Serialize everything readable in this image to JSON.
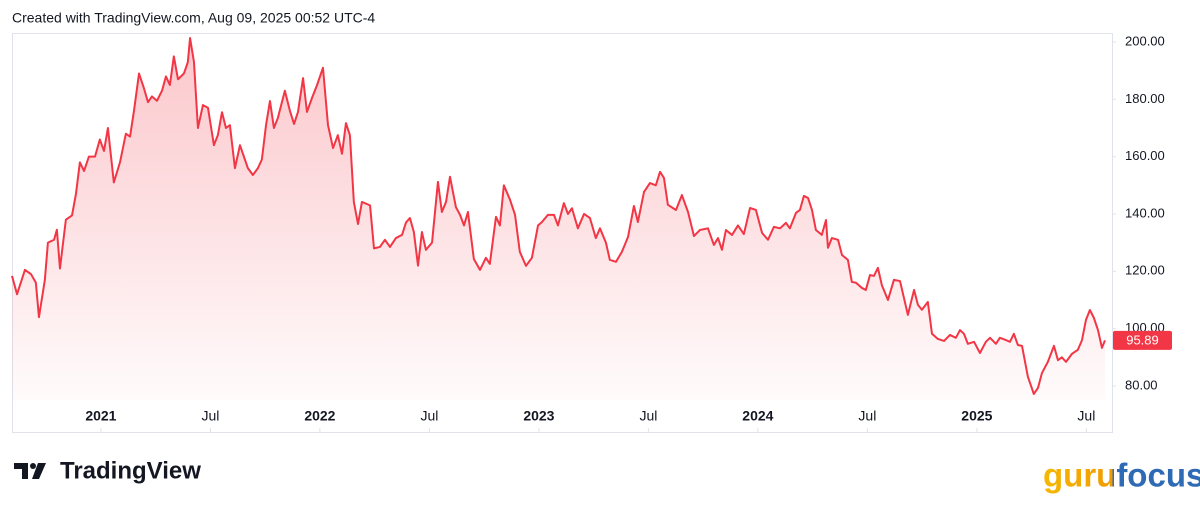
{
  "header": "Created with TradingView.com, Aug 09, 2025 00:52 UTC-4",
  "logos": [
    "TradingView",
    "gurufocus"
  ],
  "chart_data": {
    "type": "area",
    "color": "#f23645",
    "x": [
      2020.594,
      2020.617,
      2020.653,
      2020.681,
      2020.703,
      2020.717,
      2020.744,
      2020.758,
      2020.786,
      2020.799,
      2020.813,
      2020.84,
      2020.868,
      2020.886,
      2020.904,
      2020.923,
      2020.945,
      2020.973,
      2020.995,
      2021.014,
      2021.032,
      2021.059,
      2021.087,
      2021.114,
      2021.133,
      2021.151,
      2021.174,
      2021.196,
      2021.215,
      2021.233,
      2021.256,
      2021.279,
      2021.297,
      2021.315,
      2021.333,
      2021.352,
      2021.379,
      2021.397,
      2021.407,
      2021.425,
      2021.443,
      2021.466,
      2021.489,
      2021.516,
      2021.534,
      2021.553,
      2021.571,
      2021.589,
      2021.612,
      2021.635,
      2021.671,
      2021.694,
      2021.717,
      2021.735,
      2021.754,
      2021.772,
      2021.79,
      2021.808,
      2021.84,
      2021.863,
      2021.882,
      2021.9,
      2021.923,
      2021.941,
      2021.964,
      2021.987,
      2022.014,
      2022.037,
      2022.06,
      2022.082,
      2022.101,
      2022.119,
      2022.137,
      2022.155,
      2022.174,
      2022.192,
      2022.229,
      2022.247,
      2022.274,
      2022.297,
      2022.32,
      2022.347,
      2022.375,
      2022.393,
      2022.411,
      2022.429,
      2022.448,
      2022.466,
      2022.484,
      2022.512,
      2022.539,
      2022.557,
      2022.576,
      2022.594,
      2022.621,
      2022.64,
      2022.658,
      2022.676,
      2022.703,
      2022.731,
      2022.758,
      2022.776,
      2022.804,
      2022.822,
      2022.84,
      2022.868,
      2022.891,
      2022.913,
      2022.941,
      2022.968,
      2022.996,
      2023.014,
      2023.041,
      2023.069,
      2023.087,
      2023.114,
      2023.133,
      2023.151,
      2023.178,
      2023.206,
      2023.233,
      2023.26,
      2023.279,
      2023.306,
      2023.324,
      2023.352,
      2023.379,
      2023.407,
      2023.434,
      2023.452,
      2023.48,
      2023.507,
      2023.534,
      2023.553,
      2023.571,
      2023.589,
      2023.626,
      2023.653,
      2023.681,
      2023.708,
      2023.735,
      2023.772,
      2023.799,
      2023.818,
      2023.836,
      2023.854,
      2023.882,
      2023.909,
      2023.936,
      2023.964,
      2023.991,
      2024.019,
      2024.046,
      2024.073,
      2024.101,
      2024.128,
      2024.146,
      2024.174,
      2024.192,
      2024.21,
      2024.229,
      2024.247,
      2024.265,
      2024.292,
      2024.311,
      2024.32,
      2024.338,
      2024.366,
      2024.384,
      2024.411,
      2024.429,
      2024.448,
      2024.475,
      2024.493,
      2024.512,
      2024.53,
      2024.548,
      2024.566,
      2024.594,
      2024.621,
      2024.649,
      2024.685,
      2024.713,
      2024.731,
      2024.749,
      2024.776,
      2024.795,
      2024.822,
      2024.85,
      2024.877,
      2024.904,
      2024.923,
      2024.941,
      2024.959,
      2024.987,
      2025.014,
      2025.041,
      2025.06,
      2025.087,
      2025.105,
      2025.133,
      2025.151,
      2025.169,
      2025.187,
      2025.206,
      2025.233,
      2025.26,
      2025.279,
      2025.297,
      2025.324,
      2025.352,
      2025.37,
      2025.388,
      2025.407,
      2025.434,
      2025.461,
      2025.48,
      2025.498,
      2025.516,
      2025.534,
      2025.553,
      2025.571,
      2025.585
    ],
    "values": [
      118.4,
      112,
      120.5,
      119,
      116,
      104,
      117,
      130,
      131,
      134.5,
      121,
      138,
      139.5,
      147,
      158,
      155,
      160,
      160,
      166,
      162,
      170,
      151,
      158,
      168,
      167,
      176,
      189,
      184,
      179,
      181,
      179.5,
      183,
      188,
      185,
      195,
      187,
      189,
      193,
      201.4,
      193,
      170,
      178,
      177,
      164,
      167.5,
      175.5,
      170,
      171,
      156,
      164,
      156,
      153.6,
      156,
      159,
      171,
      179.4,
      170,
      173.5,
      183,
      176,
      171.4,
      175.6,
      187.4,
      175.6,
      180.5,
      185,
      191,
      171,
      163,
      167.5,
      161,
      171.7,
      167.5,
      144.2,
      136.5,
      144.2,
      143,
      128,
      128.5,
      131,
      128.5,
      131.6,
      132.7,
      137,
      138.6,
      133.7,
      122,
      133.7,
      127.5,
      130,
      151.2,
      140.7,
      144.2,
      153,
      142.4,
      139.7,
      136,
      140.7,
      124.3,
      120.5,
      124.7,
      122.6,
      139,
      136,
      150,
      145,
      139.7,
      126.8,
      121.9,
      124.7,
      136,
      137.2,
      139.7,
      139.7,
      136,
      143.8,
      140,
      142,
      135,
      140,
      138.6,
      131.6,
      135,
      130,
      124,
      123.3,
      126.8,
      132,
      142.8,
      137.2,
      147.7,
      150.8,
      150,
      154.7,
      152.6,
      143.2,
      141.4,
      146.6,
      140.7,
      132.3,
      134.4,
      135,
      129.2,
      131.6,
      127.5,
      134.4,
      132.7,
      136,
      133,
      142.1,
      141.4,
      133.4,
      131,
      135.5,
      135,
      136.9,
      135,
      140.4,
      141.4,
      146.3,
      145.6,
      141.4,
      134.4,
      132.7,
      137.9,
      128.2,
      131.6,
      131,
      125.7,
      124,
      116.3,
      116,
      114.2,
      113.5,
      118.7,
      118.4,
      121.2,
      115.2,
      110,
      117,
      116.6,
      104.8,
      113.5,
      108.3,
      106.6,
      109.3,
      98.2,
      96.4,
      95.7,
      97.8,
      96.8,
      99.5,
      98.2,
      94.7,
      95.4,
      91.5,
      95.4,
      96.8,
      94.7,
      96.8,
      96,
      95.4,
      98.2,
      94.3,
      94,
      83.2,
      77.2,
      79.3,
      84.5,
      88.4,
      94,
      89,
      90,
      88.4,
      91.2,
      92.6,
      96,
      103,
      106.5,
      103.8,
      99.5,
      93.3,
      95.89
    ],
    "xlim": [
      2020.594,
      2025.617
    ],
    "xticks": [
      2021,
      {
        "value": 2021.5,
        "label": "Jul"
      },
      2022,
      {
        "value": 2022.5,
        "label": "Jul"
      },
      2023,
      {
        "value": 2023.5,
        "label": "Jul"
      },
      2024,
      {
        "value": 2024.5,
        "label": "Jul"
      },
      2025,
      {
        "value": 2025.5,
        "label": "Jul"
      }
    ],
    "ylim": [
      75,
      203
    ],
    "yticks": [
      {
        "value": 80,
        "label": "80.00"
      },
      {
        "value": 100,
        "label": "100.00"
      },
      {
        "value": 120,
        "label": "120.00"
      },
      {
        "value": 140,
        "label": "140.00"
      },
      {
        "value": 160,
        "label": "160.00"
      },
      {
        "value": 180,
        "label": "180.00"
      },
      {
        "value": 200,
        "label": "200.00"
      }
    ]
  }
}
